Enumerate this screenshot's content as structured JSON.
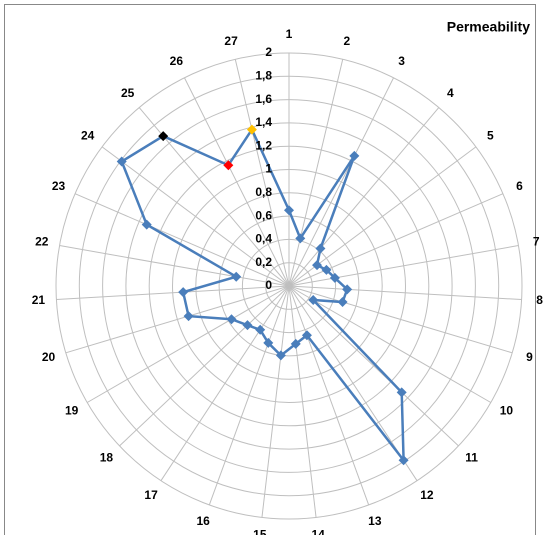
{
  "chart_data": {
    "type": "radar",
    "title": "Permeability",
    "categories": [
      "1",
      "2",
      "3",
      "4",
      "5",
      "6",
      "7",
      "8",
      "9",
      "10",
      "11",
      "12",
      "13",
      "14",
      "15",
      "16",
      "17",
      "18",
      "19",
      "20",
      "21",
      "22",
      "23",
      "24",
      "25",
      "26",
      "27"
    ],
    "series": [
      {
        "name": "Permeability",
        "color": "#4a7ebb",
        "values": [
          0.65,
          0.42,
          1.25,
          0.42,
          0.3,
          0.35,
          0.4,
          0.5,
          0.48,
          0.24,
          1.33,
          1.79,
          0.45,
          0.5,
          0.6,
          0.52,
          0.45,
          0.49,
          0.57,
          0.9,
          0.91,
          0.46,
          1.33,
          1.79,
          1.68,
          1.16,
          1.38
        ],
        "marker_colors": [
          "#4a7ebb",
          "#4a7ebb",
          "#4a7ebb",
          "#4a7ebb",
          "#4a7ebb",
          "#4a7ebb",
          "#4a7ebb",
          "#4a7ebb",
          "#4a7ebb",
          "#4a7ebb",
          "#4a7ebb",
          "#4a7ebb",
          "#4a7ebb",
          "#4a7ebb",
          "#4a7ebb",
          "#4a7ebb",
          "#4a7ebb",
          "#4a7ebb",
          "#4a7ebb",
          "#4a7ebb",
          "#4a7ebb",
          "#4a7ebb",
          "#4a7ebb",
          "#4a7ebb",
          "#000000",
          "#ff0000",
          "#ffc000"
        ]
      }
    ],
    "ylim": [
      0,
      2
    ],
    "yticks": [
      0,
      {
        "value": 0.2,
        "label": "0,2"
      },
      {
        "value": 0.4,
        "label": "0,4"
      },
      {
        "value": 0.6,
        "label": "0,6"
      },
      {
        "value": 0.8,
        "label": "0,8"
      },
      1,
      {
        "value": 1.2,
        "label": "1,2"
      },
      {
        "value": 1.4,
        "label": "1,4"
      },
      {
        "value": 1.6,
        "label": "1,6"
      },
      {
        "value": 1.8,
        "label": "1,8"
      },
      2
    ],
    "grid": true
  }
}
